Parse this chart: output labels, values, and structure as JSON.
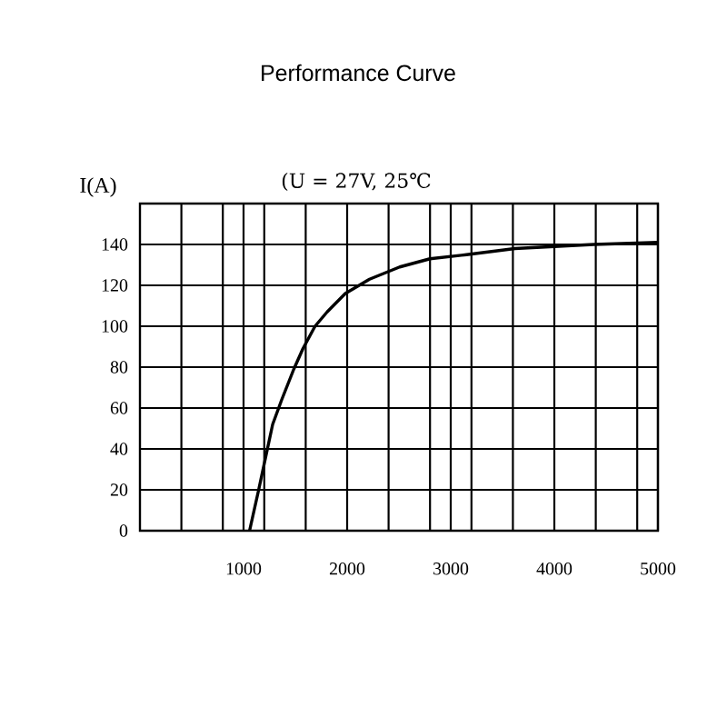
{
  "chart_data": {
    "type": "line",
    "title": "Performance Curve",
    "ylabel": "I(A)",
    "annotations": [
      "(U = 27V, 25℃"
    ],
    "x": [
      1058,
      1146,
      1281,
      1368,
      1485,
      1573,
      1690,
      1807,
      1982,
      2216,
      2508,
      2800,
      3152,
      3620,
      4380,
      4995
    ],
    "values": [
      0,
      20,
      52,
      64,
      79,
      89,
      100,
      107,
      116,
      123,
      129,
      133,
      135,
      138,
      140,
      141
    ],
    "color": "#000000",
    "line_style": "solid",
    "marker": "none",
    "xlim": [
      0,
      5000
    ],
    "ylim": [
      0,
      160
    ],
    "xticks": [
      {
        "value": 400,
        "label": null
      },
      {
        "value": 800,
        "label": null
      },
      1000,
      {
        "value": 1200,
        "label": null
      },
      {
        "value": 1600,
        "label": null
      },
      2000,
      {
        "value": 2400,
        "label": null
      },
      {
        "value": 2800,
        "label": null
      },
      3000,
      {
        "value": 3200,
        "label": null
      },
      {
        "value": 3600,
        "label": null
      },
      4000,
      {
        "value": 4400,
        "label": null
      },
      {
        "value": 4800,
        "label": null
      },
      5000
    ],
    "yticks": [
      0,
      20,
      40,
      60,
      80,
      100,
      120,
      140
    ],
    "grid": true
  }
}
